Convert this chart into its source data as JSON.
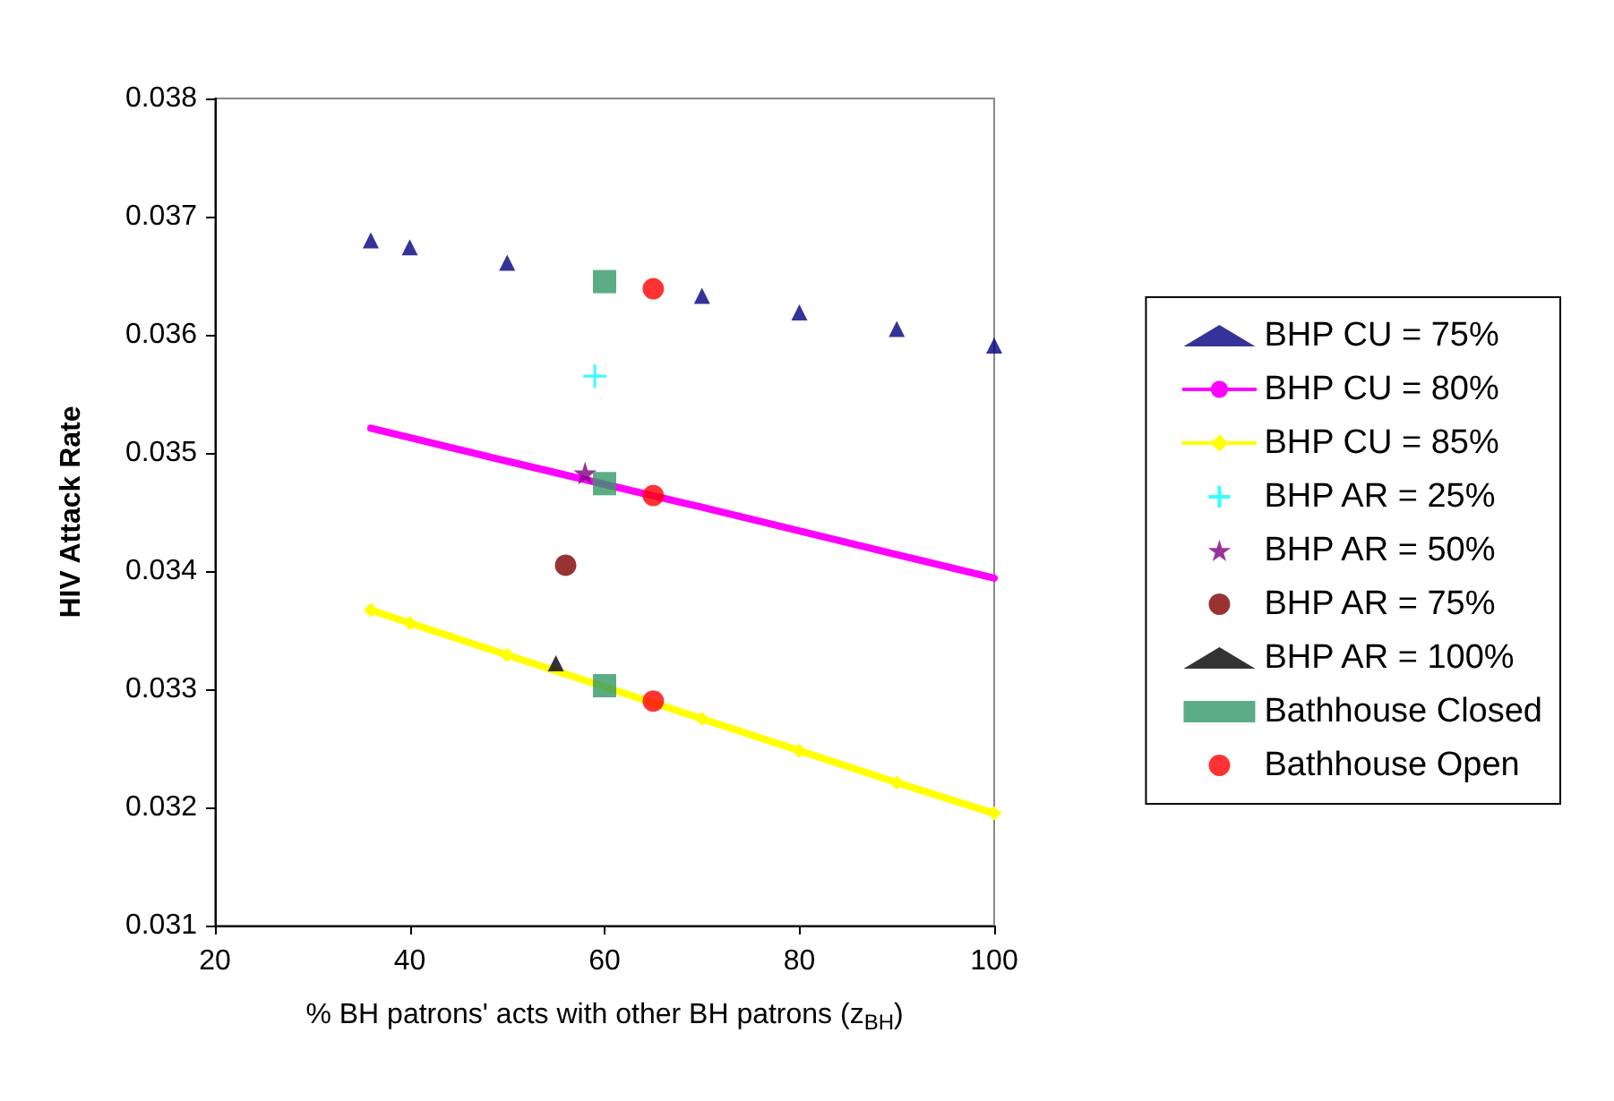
{
  "chart_data": {
    "type": "line",
    "xlabel": "% BH patrons' acts with other BH patrons (z$_{BH}$)",
    "ylabel": "HIV Attack Rate",
    "xlim": [
      20,
      100
    ],
    "xticks": [
      20,
      40,
      60,
      80,
      100
    ],
    "ylim": [
      0.031,
      0.038
    ],
    "yticks": [
      0.031,
      0.032,
      0.033,
      0.034,
      0.035,
      0.036,
      0.037,
      0.038
    ],
    "grid": false,
    "legend": "right",
    "series": [
      {
        "name": "BHP CU = 75%",
        "type": "scatter",
        "marker": "triangle",
        "color": "#000080",
        "x": [
          36,
          40,
          50,
          70,
          80,
          90,
          100
        ],
        "values": [
          0.0368,
          0.03674,
          0.03661,
          0.03633,
          0.03619,
          0.03605,
          0.03591
        ]
      },
      {
        "name": "BHP CU = 80%",
        "marker": "none",
        "color": "#ff00ff",
        "x": [
          36,
          40,
          50,
          70,
          80,
          90,
          100
        ],
        "values": [
          0.03521,
          0.03513,
          0.03493,
          0.03454,
          0.03434,
          0.03414,
          0.03394
        ]
      },
      {
        "name": "BHP CU = 85%",
        "marker": "diamond",
        "color": "#ffff00",
        "x": [
          36,
          40,
          50,
          70,
          80,
          90,
          100
        ],
        "values": [
          0.03367,
          0.03356,
          0.03329,
          0.03275,
          0.03248,
          0.03221,
          0.03195
        ]
      },
      {
        "name": "BHP AR = 25%",
        "type": "scatter",
        "marker": "cross",
        "color": "#00ffff",
        "x": [
          59
        ],
        "values": [
          0.03565
        ]
      },
      {
        "name": "BHP AR = 50%",
        "type": "scatter",
        "marker": "star",
        "color": "#800080",
        "x": [
          58
        ],
        "values": [
          0.03483
        ]
      },
      {
        "name": "BHP AR = 75%",
        "type": "scatter",
        "marker": "circle",
        "color": "#800000",
        "x": [
          56
        ],
        "values": [
          0.03405
        ]
      },
      {
        "name": "BHP AR = 100%",
        "type": "scatter",
        "marker": "triangle",
        "color": "#000000",
        "x": [
          55
        ],
        "values": [
          0.03322
        ]
      },
      {
        "name": "Bathhouse Closed",
        "type": "scatter",
        "marker": "square",
        "color": "#339966",
        "x": [
          60,
          60,
          60
        ],
        "values": [
          0.03645,
          0.03474,
          0.03303
        ]
      },
      {
        "name": "Bathhouse Open",
        "type": "scatter",
        "marker": "circle",
        "color": "#ff0000",
        "x": [
          65,
          65,
          65
        ],
        "values": [
          0.03639,
          0.03464,
          0.0329
        ]
      }
    ]
  }
}
